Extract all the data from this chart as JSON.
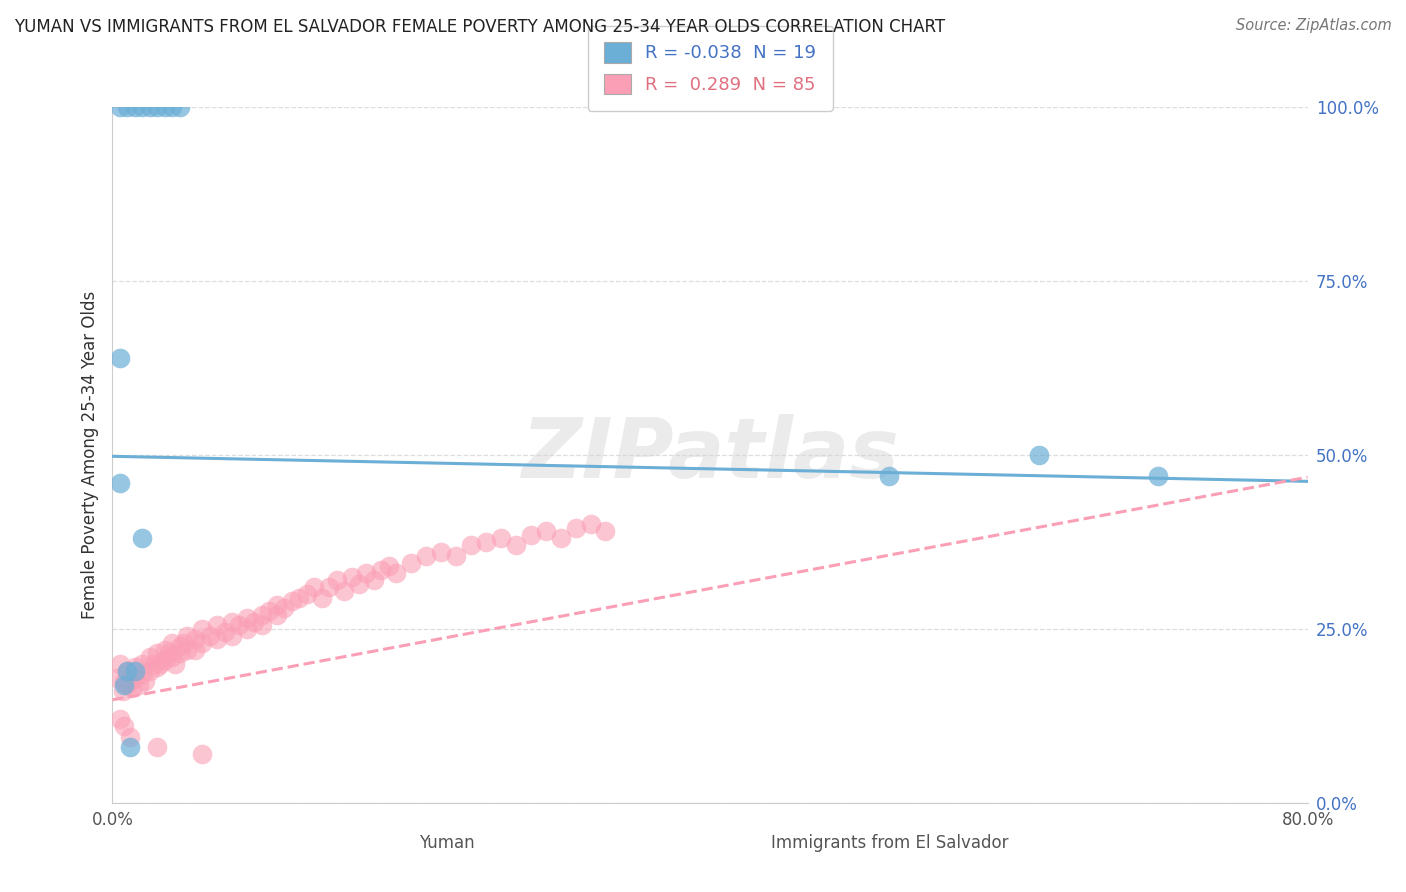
{
  "title": "YUMAN VS IMMIGRANTS FROM EL SALVADOR FEMALE POVERTY AMONG 25-34 YEAR OLDS CORRELATION CHART",
  "source": "Source: ZipAtlas.com",
  "ylabel": "Female Poverty Among 25-34 Year Olds",
  "xlim": [
    0.0,
    0.8
  ],
  "ylim": [
    0.0,
    1.0
  ],
  "ytick_labels_right": [
    "100.0%",
    "75.0%",
    "50.0%",
    "25.0%",
    "0.0%"
  ],
  "yticks": [
    1.0,
    0.75,
    0.5,
    0.25,
    0.0
  ],
  "watermark_text": "ZIPatlas",
  "blue_color": "#6baed6",
  "pink_color": "#fa9fb5",
  "blue_label": "R = -0.038  N = 19",
  "pink_label": "R =  0.289  N = 85",
  "blue_text_color": "#4472c4",
  "pink_text_color": "#e07080",
  "right_tick_color": "#4472c4",
  "blue_scatter_x": [
    0.005,
    0.01,
    0.015,
    0.02,
    0.025,
    0.03,
    0.035,
    0.04,
    0.045,
    0.005,
    0.01,
    0.015,
    0.02,
    0.005,
    0.008,
    0.012,
    0.52,
    0.62,
    0.7
  ],
  "blue_scatter_y": [
    1.0,
    1.0,
    1.0,
    1.0,
    1.0,
    1.0,
    1.0,
    1.0,
    1.0,
    0.64,
    0.19,
    0.19,
    0.38,
    0.46,
    0.17,
    0.08,
    0.47,
    0.5,
    0.47
  ],
  "blue_line_x": [
    0.0,
    0.8
  ],
  "blue_line_y": [
    0.498,
    0.462
  ],
  "pink_line_x": [
    0.0,
    0.8
  ],
  "pink_line_y": [
    0.148,
    0.468
  ],
  "pink_scatter_x": [
    0.003,
    0.005,
    0.007,
    0.008,
    0.01,
    0.01,
    0.012,
    0.013,
    0.015,
    0.015,
    0.018,
    0.02,
    0.02,
    0.022,
    0.025,
    0.025,
    0.028,
    0.03,
    0.03,
    0.032,
    0.035,
    0.035,
    0.038,
    0.04,
    0.04,
    0.042,
    0.045,
    0.045,
    0.048,
    0.05,
    0.05,
    0.055,
    0.055,
    0.06,
    0.06,
    0.065,
    0.07,
    0.07,
    0.075,
    0.08,
    0.08,
    0.085,
    0.09,
    0.09,
    0.095,
    0.1,
    0.1,
    0.105,
    0.11,
    0.11,
    0.115,
    0.12,
    0.125,
    0.13,
    0.135,
    0.14,
    0.145,
    0.15,
    0.155,
    0.16,
    0.165,
    0.17,
    0.175,
    0.18,
    0.185,
    0.19,
    0.2,
    0.21,
    0.22,
    0.23,
    0.24,
    0.25,
    0.26,
    0.27,
    0.28,
    0.29,
    0.3,
    0.31,
    0.32,
    0.33,
    0.005,
    0.008,
    0.012,
    0.03,
    0.06
  ],
  "pink_scatter_y": [
    0.18,
    0.2,
    0.16,
    0.175,
    0.19,
    0.17,
    0.175,
    0.165,
    0.18,
    0.195,
    0.17,
    0.185,
    0.2,
    0.175,
    0.21,
    0.19,
    0.2,
    0.195,
    0.215,
    0.2,
    0.22,
    0.205,
    0.215,
    0.21,
    0.23,
    0.2,
    0.225,
    0.215,
    0.23,
    0.22,
    0.24,
    0.235,
    0.22,
    0.25,
    0.23,
    0.24,
    0.255,
    0.235,
    0.245,
    0.26,
    0.24,
    0.255,
    0.265,
    0.25,
    0.26,
    0.27,
    0.255,
    0.275,
    0.27,
    0.285,
    0.28,
    0.29,
    0.295,
    0.3,
    0.31,
    0.295,
    0.31,
    0.32,
    0.305,
    0.325,
    0.315,
    0.33,
    0.32,
    0.335,
    0.34,
    0.33,
    0.345,
    0.355,
    0.36,
    0.355,
    0.37,
    0.375,
    0.38,
    0.37,
    0.385,
    0.39,
    0.38,
    0.395,
    0.4,
    0.39,
    0.12,
    0.11,
    0.095,
    0.08,
    0.07
  ]
}
